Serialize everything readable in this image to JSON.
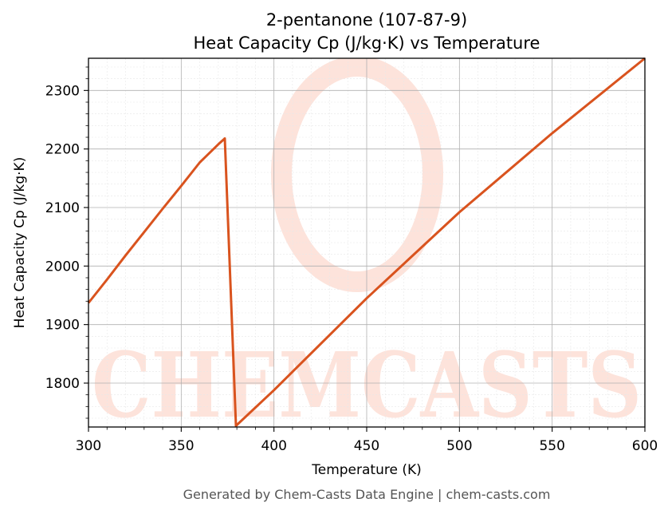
{
  "chart_data": {
    "type": "line",
    "title": "2-pentanone (107-87-9)",
    "subtitle": "Heat Capacity Cp (J/kg·K) vs Temperature",
    "xlabel": "Temperature (K)",
    "ylabel": "Heat Capacity Cp (J/kg·K)",
    "xlim": [
      300,
      600
    ],
    "ylim": [
      1725,
      2355
    ],
    "xticks": [
      300,
      350,
      400,
      450,
      500,
      550,
      600
    ],
    "yticks": [
      1800,
      1900,
      2000,
      2100,
      2200,
      2300
    ],
    "grid": true,
    "series": [
      {
        "color": "#d9531e",
        "x": [
          300,
          310,
          320,
          330,
          340,
          350,
          360,
          370,
          373.5,
          379.5,
          400,
          450,
          500,
          550,
          600
        ],
        "y": [
          1937,
          1977,
          2018,
          2058,
          2098,
          2137,
          2177,
          2208,
          2218,
          1727,
          1788,
          1945,
          2092,
          2227,
          2355
        ]
      }
    ]
  },
  "footer": "Generated by Chem-Casts Data Engine | chem-casts.com",
  "watermark": {
    "text": "CHEMCASTS",
    "color": "#fde3db"
  }
}
